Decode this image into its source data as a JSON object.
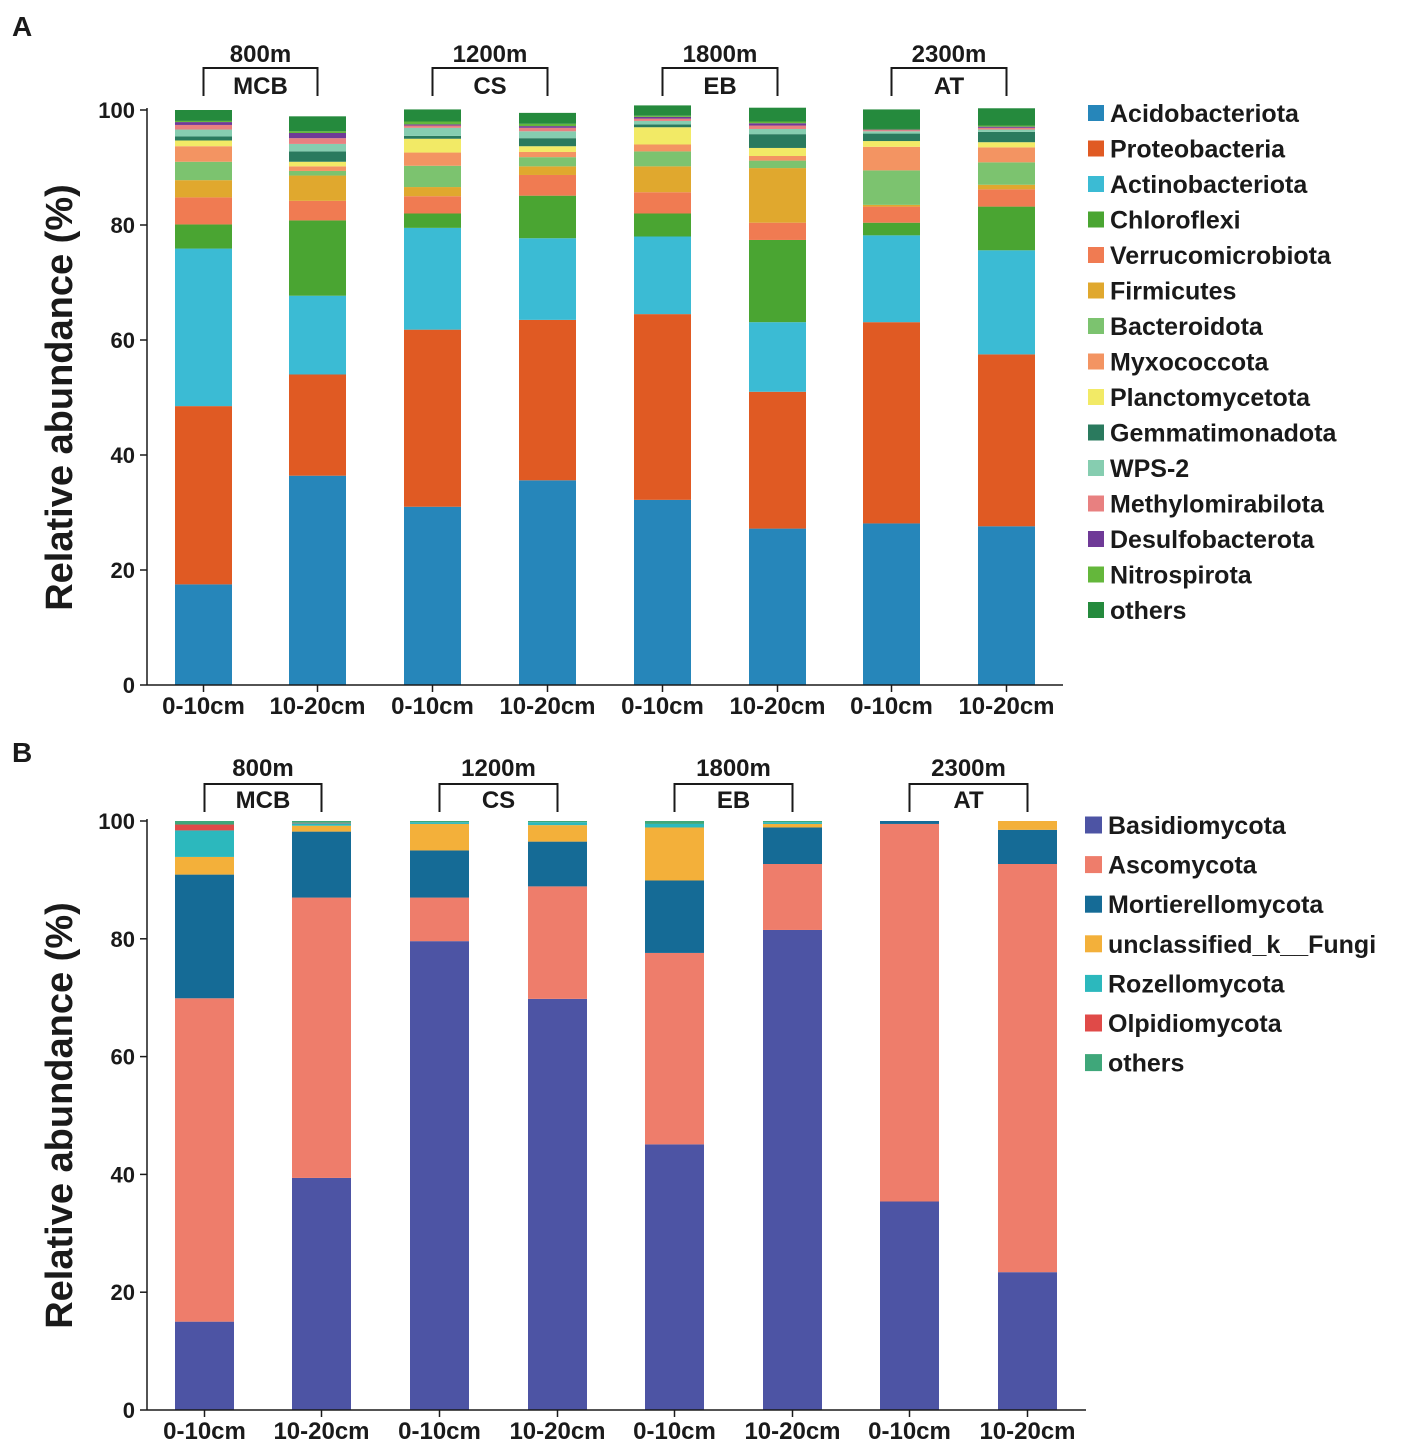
{
  "chart_data": [
    {
      "type": "bar",
      "stacked": true,
      "panel": "A",
      "ylabel": "Relative abundance (%)",
      "ylim": [
        0,
        100
      ],
      "yticks": [
        0,
        20,
        40,
        60,
        80,
        100
      ],
      "categories": [
        "0-10cm",
        "10-20cm",
        "0-10cm",
        "10-20cm",
        "0-10cm",
        "10-20cm",
        "0-10cm",
        "10-20cm"
      ],
      "groups": [
        {
          "elevation": "800m",
          "site": "MCB"
        },
        {
          "elevation": "1200m",
          "site": "CS"
        },
        {
          "elevation": "1800m",
          "site": "EB"
        },
        {
          "elevation": "2300m",
          "site": "AT"
        }
      ],
      "series": [
        {
          "name": "Acidobacteriota",
          "color": "#2686ba",
          "values": [
            17.5,
            36.4,
            31.0,
            35.6,
            32.2,
            27.2,
            28.1,
            27.6
          ]
        },
        {
          "name": "Proteobacteria",
          "color": "#e05a23",
          "values": [
            31.0,
            17.6,
            30.8,
            27.9,
            32.3,
            23.8,
            35.0,
            29.9
          ]
        },
        {
          "name": "Actinobacteriota",
          "color": "#3bbbd4",
          "values": [
            27.4,
            13.7,
            17.7,
            14.2,
            13.5,
            12.1,
            15.1,
            18.1
          ]
        },
        {
          "name": "Chloroflexi",
          "color": "#4aa532",
          "values": [
            4.2,
            13.1,
            2.5,
            7.4,
            4.0,
            14.3,
            2.2,
            7.6
          ]
        },
        {
          "name": "Verrucomicrobiota",
          "color": "#f07b52",
          "values": [
            4.7,
            3.4,
            3.0,
            3.6,
            3.7,
            3.0,
            2.8,
            3.0
          ]
        },
        {
          "name": "Firmicutes",
          "color": "#e0a82e",
          "values": [
            3.0,
            4.4,
            1.6,
            1.5,
            4.5,
            9.5,
            0.3,
            0.8
          ]
        },
        {
          "name": "Bacteroidota",
          "color": "#7cc36f",
          "values": [
            3.2,
            0.8,
            3.7,
            1.6,
            2.6,
            1.3,
            6.0,
            3.9
          ]
        },
        {
          "name": "Myxococcota",
          "color": "#f39462",
          "values": [
            2.7,
            0.8,
            2.3,
            0.9,
            1.2,
            0.8,
            4.1,
            2.6
          ]
        },
        {
          "name": "Planctomycetota",
          "color": "#f2ea66",
          "values": [
            1.0,
            0.8,
            2.4,
            1.0,
            3.0,
            1.4,
            1.0,
            0.9
          ]
        },
        {
          "name": "Gemmatimonadota",
          "color": "#2a7a5e",
          "values": [
            0.7,
            1.8,
            0.5,
            1.4,
            0.5,
            2.4,
            1.3,
            1.8
          ]
        },
        {
          "name": "WPS-2",
          "color": "#86cdb0",
          "values": [
            1.2,
            1.3,
            1.4,
            1.2,
            0.6,
            0.9,
            0.4,
            0.4
          ]
        },
        {
          "name": "Methylomirabilota",
          "color": "#e88080",
          "values": [
            0.8,
            1.0,
            0.4,
            0.6,
            0.4,
            0.6,
            0.2,
            0.3
          ]
        },
        {
          "name": "Desulfobacterota",
          "color": "#6f3a97",
          "values": [
            0.5,
            0.9,
            0.2,
            0.3,
            0.3,
            0.4,
            0.1,
            0.2
          ]
        },
        {
          "name": "Nitrospirota",
          "color": "#64b73b",
          "values": [
            0.2,
            0.3,
            0.5,
            0.4,
            0.2,
            0.3,
            0.1,
            0.2
          ]
        },
        {
          "name": "others",
          "color": "#258a3d",
          "values": [
            1.9,
            2.6,
            2.1,
            1.9,
            1.8,
            2.4,
            3.4,
            3.0
          ]
        }
      ]
    },
    {
      "type": "bar",
      "stacked": true,
      "panel": "B",
      "ylabel": "Relative abundance (%)",
      "ylim": [
        0,
        100
      ],
      "yticks": [
        0,
        20,
        40,
        60,
        80,
        100
      ],
      "categories": [
        "0-10cm",
        "10-20cm",
        "0-10cm",
        "10-20cm",
        "0-10cm",
        "10-20cm",
        "0-10cm",
        "10-20cm"
      ],
      "groups": [
        {
          "elevation": "800m",
          "site": "MCB"
        },
        {
          "elevation": "1200m",
          "site": "CS"
        },
        {
          "elevation": "1800m",
          "site": "EB"
        },
        {
          "elevation": "2300m",
          "site": "AT"
        }
      ],
      "series": [
        {
          "name": "Basidiomycota",
          "color": "#4d54a4",
          "values": [
            15.0,
            39.4,
            79.6,
            69.8,
            45.1,
            81.5,
            35.4,
            23.4
          ]
        },
        {
          "name": "Ascomycota",
          "color": "#ee7d6b",
          "values": [
            54.9,
            47.6,
            7.4,
            19.1,
            32.5,
            11.2,
            64.1,
            69.3
          ]
        },
        {
          "name": "Mortierellomycota",
          "color": "#156b96",
          "values": [
            21.0,
            11.2,
            8.0,
            7.6,
            12.3,
            6.2,
            0.5,
            5.8
          ]
        },
        {
          "name": "unclassified_k__Fungi",
          "color": "#f3b03a",
          "values": [
            3.0,
            1.0,
            4.5,
            2.8,
            9.0,
            0.6,
            0.0,
            1.5
          ]
        },
        {
          "name": "Rozellomycota",
          "color": "#2cb8bd",
          "values": [
            4.5,
            0.4,
            0.3,
            0.5,
            0.6,
            0.3,
            0.0,
            0.0
          ]
        },
        {
          "name": "Olpidiomycota",
          "color": "#e04a48",
          "values": [
            1.0,
            0.1,
            0.0,
            0.0,
            0.0,
            0.0,
            0.0,
            0.0
          ]
        },
        {
          "name": "others",
          "color": "#3fa77a",
          "values": [
            0.6,
            0.3,
            0.2,
            0.2,
            0.5,
            0.2,
            0.0,
            0.0
          ]
        }
      ]
    }
  ]
}
